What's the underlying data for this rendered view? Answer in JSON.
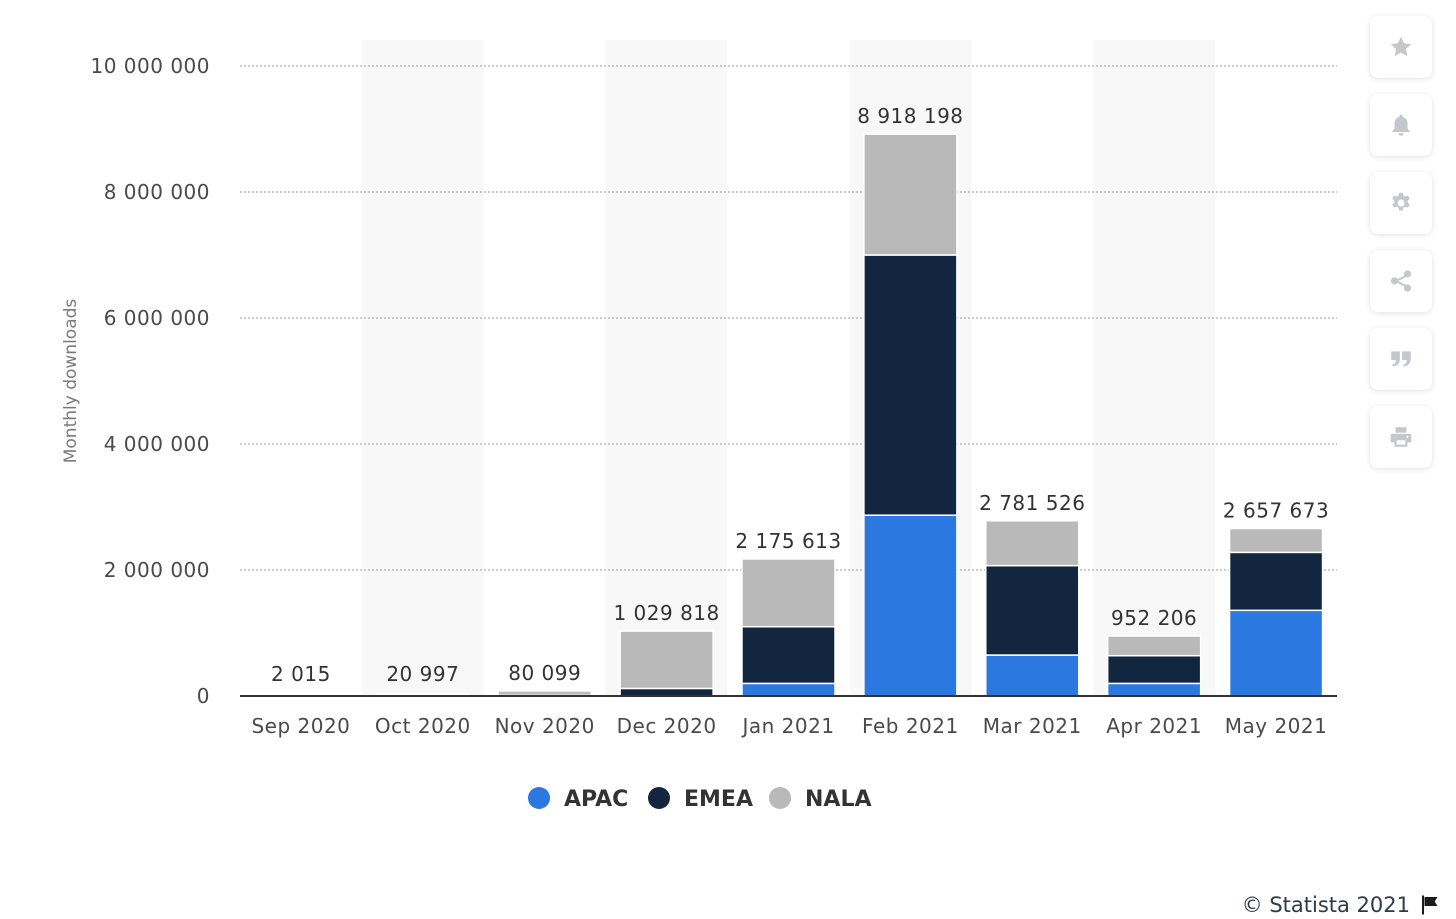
{
  "chart_data": {
    "type": "bar",
    "stacked": true,
    "ylabel": "Monthly downloads",
    "ylim": [
      0,
      10000000
    ],
    "yticks": [
      0,
      2000000,
      4000000,
      6000000,
      8000000,
      10000000
    ],
    "ytick_labels": [
      "0",
      "2 000 000",
      "4 000 000",
      "6 000 000",
      "8 000 000",
      "10 000 000"
    ],
    "grid": true,
    "legend_placement": "bottom-center",
    "categories": [
      "Sep 2020",
      "Oct 2020",
      "Nov 2020",
      "Dec 2020",
      "Jan 2021",
      "Feb 2021",
      "Mar 2021",
      "Apr 2021",
      "May 2021"
    ],
    "totals": [
      2015,
      20997,
      80099,
      1029818,
      2175613,
      8918198,
      2781526,
      952206,
      2657673
    ],
    "total_labels": [
      "2 015",
      "20 997",
      "80 099",
      "1 029 818",
      "2 175 613",
      "8 918 198",
      "2 781 526",
      "952 206",
      "2 657 673"
    ],
    "series": [
      {
        "name": "APAC",
        "color": "#2a78e0",
        "values": [
          0,
          0,
          0,
          0,
          200000,
          2870000,
          650000,
          200000,
          1360000
        ]
      },
      {
        "name": "EMEA",
        "color": "#12263f",
        "values": [
          0,
          5000,
          10000,
          120000,
          900000,
          4130000,
          1420000,
          440000,
          920000
        ]
      },
      {
        "name": "NALA",
        "color": "#b9b9b9",
        "values": [
          2015,
          15997,
          70099,
          909818,
          1075613,
          1918198,
          711526,
          312206,
          377673
        ]
      }
    ]
  },
  "toolbar": {
    "items": [
      {
        "icon": "star-icon"
      },
      {
        "icon": "bell-icon"
      },
      {
        "icon": "gear-icon"
      },
      {
        "icon": "share-icon"
      },
      {
        "icon": "quote-icon"
      },
      {
        "icon": "print-icon"
      }
    ]
  },
  "footer": {
    "credit": "© Statista 2021",
    "icon": "flag-icon"
  }
}
